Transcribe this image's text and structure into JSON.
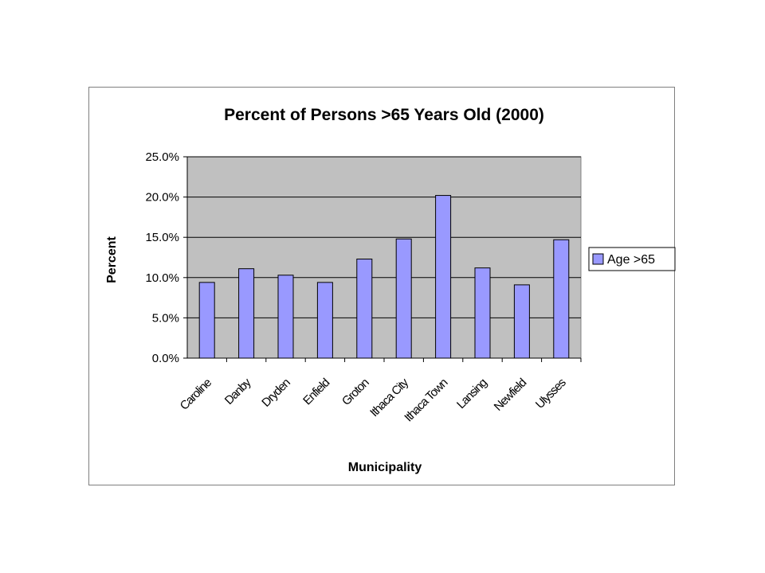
{
  "chart_data": {
    "type": "bar",
    "title": "Percent of Persons >65 Years Old (2000)",
    "xlabel": "Municipality",
    "ylabel": "Percent",
    "categories": [
      "Caroline",
      "Danby",
      "Dryden",
      "Enfield",
      "Groton",
      "Ithaca City",
      "Ithaca Town",
      "Lansing",
      "Newfield",
      "Ulysses"
    ],
    "series": [
      {
        "name": "Age >65",
        "values": [
          9.4,
          11.1,
          10.3,
          9.4,
          12.3,
          14.8,
          20.2,
          11.2,
          9.1,
          14.7
        ],
        "color": "#9999ff"
      }
    ],
    "ylim": [
      0,
      25
    ],
    "yticks": [
      "0.0%",
      "5.0%",
      "10.0%",
      "15.0%",
      "20.0%",
      "25.0%"
    ],
    "grid": true,
    "legend_position": "right",
    "plot_background": "#c0c0c0"
  }
}
